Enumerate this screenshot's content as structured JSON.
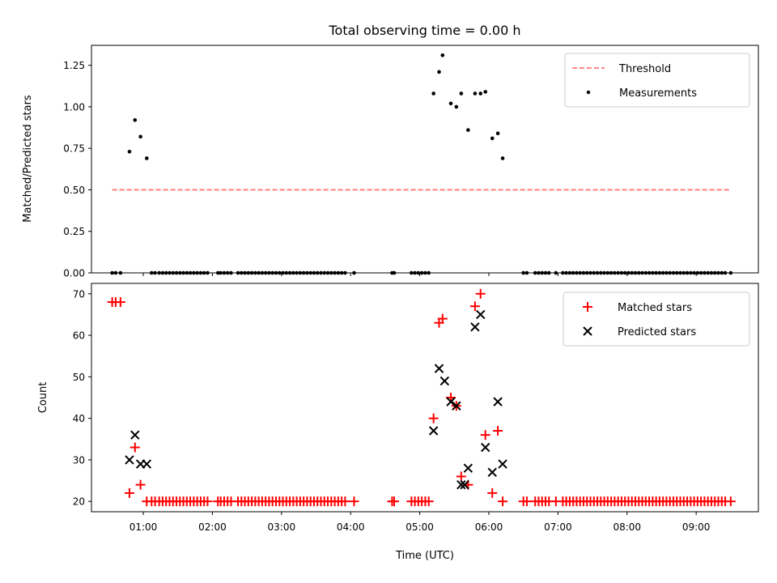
{
  "chart_data": {
    "title": "Total observing time = 0.00 h",
    "xlabel": "Time (UTC)",
    "x_tick_labels": [
      "01:00",
      "02:00",
      "03:00",
      "04:00",
      "05:00",
      "06:00",
      "07:00",
      "08:00",
      "09:00"
    ],
    "x_tick_hours": [
      1,
      2,
      3,
      4,
      5,
      6,
      7,
      8,
      9
    ],
    "xlim_hours": [
      0.25,
      9.9
    ],
    "colors": {
      "threshold": "#ff7777",
      "measurements": "#000000",
      "matched": "#ff0000",
      "predicted": "#000000"
    },
    "panels": [
      {
        "type": "scatter",
        "ylabel": "Matched/Predicted stars",
        "ylim": [
          0,
          1.37
        ],
        "y_ticks": [
          0.0,
          0.25,
          0.5,
          0.75,
          1.0,
          1.25
        ],
        "y_tick_labels": [
          "0.00",
          "0.25",
          "0.50",
          "0.75",
          "1.00",
          "1.25"
        ],
        "legend": [
          "Threshold",
          "Measurements"
        ],
        "legend_position": "top-right",
        "threshold": {
          "name": "Threshold",
          "y": 0.5,
          "x_range": [
            0.55,
            9.5
          ]
        },
        "measurements": {
          "name": "Measurements",
          "x": [
            0.55,
            0.6,
            0.67,
            0.8,
            0.88,
            0.96,
            1.05,
            1.12,
            1.17,
            1.23,
            1.28,
            1.33,
            1.38,
            1.43,
            1.48,
            1.53,
            1.58,
            1.63,
            1.68,
            1.73,
            1.78,
            1.83,
            1.88,
            1.93,
            2.08,
            2.12,
            2.17,
            2.22,
            2.27,
            2.37,
            2.42,
            2.47,
            2.52,
            2.57,
            2.62,
            2.67,
            2.72,
            2.77,
            2.82,
            2.87,
            2.92,
            2.97,
            3.02,
            3.07,
            3.12,
            3.17,
            3.22,
            3.27,
            3.32,
            3.37,
            3.42,
            3.47,
            3.52,
            3.57,
            3.62,
            3.67,
            3.72,
            3.77,
            3.82,
            3.87,
            3.92,
            4.05,
            4.6,
            4.63,
            4.88,
            4.93,
            4.98,
            5.03,
            5.08,
            5.13,
            5.2,
            5.28,
            5.33,
            5.45,
            5.53,
            5.6,
            5.7,
            5.8,
            5.88,
            5.95,
            6.05,
            6.13,
            6.2,
            6.5,
            6.55,
            6.67,
            6.72,
            6.77,
            6.82,
            6.87,
            6.97,
            7.07,
            7.12,
            7.17,
            7.22,
            7.27,
            7.32,
            7.37,
            7.42,
            7.47,
            7.52,
            7.57,
            7.62,
            7.67,
            7.72,
            7.77,
            7.82,
            7.87,
            7.92,
            7.97,
            8.02,
            8.07,
            8.12,
            8.17,
            8.22,
            8.27,
            8.32,
            8.37,
            8.42,
            8.47,
            8.52,
            8.57,
            8.62,
            8.67,
            8.72,
            8.77,
            8.82,
            8.87,
            8.92,
            8.97,
            9.02,
            9.07,
            9.12,
            9.17,
            9.22,
            9.27,
            9.32,
            9.37,
            9.42,
            9.5
          ],
          "y": [
            0,
            0,
            0,
            0.73,
            0.92,
            0.82,
            0.69,
            0,
            0,
            0,
            0,
            0,
            0,
            0,
            0,
            0,
            0,
            0,
            0,
            0,
            0,
            0,
            0,
            0,
            0,
            0,
            0,
            0,
            0,
            0,
            0,
            0,
            0,
            0,
            0,
            0,
            0,
            0,
            0,
            0,
            0,
            0,
            0,
            0,
            0,
            0,
            0,
            0,
            0,
            0,
            0,
            0,
            0,
            0,
            0,
            0,
            0,
            0,
            0,
            0,
            0,
            0,
            0,
            0,
            0,
            0,
            0,
            0,
            0,
            0,
            1.08,
            1.21,
            1.31,
            1.02,
            1.0,
            1.08,
            0.86,
            1.08,
            1.08,
            1.09,
            0.81,
            0.84,
            0.69,
            0,
            0,
            0,
            0,
            0,
            0,
            0,
            0,
            0,
            0,
            0,
            0,
            0,
            0,
            0,
            0,
            0,
            0,
            0,
            0,
            0,
            0,
            0,
            0,
            0,
            0,
            0,
            0,
            0,
            0,
            0,
            0,
            0,
            0,
            0,
            0,
            0,
            0,
            0,
            0,
            0,
            0,
            0,
            0,
            0,
            0,
            0,
            0,
            0,
            0,
            0,
            0,
            0,
            0,
            0,
            0,
            0
          ]
        }
      },
      {
        "type": "scatter",
        "ylabel": "Count",
        "ylim": [
          17.5,
          72.5
        ],
        "y_ticks": [
          20,
          30,
          40,
          50,
          60,
          70
        ],
        "y_tick_labels": [
          "20",
          "30",
          "40",
          "50",
          "60",
          "70"
        ],
        "legend": [
          "Matched stars",
          "Predicted stars"
        ],
        "legend_position": "top-right",
        "series": [
          {
            "name": "Matched stars",
            "marker": "+",
            "x": [
              0.55,
              0.6,
              0.67,
              0.8,
              0.88,
              0.96,
              1.05,
              1.12,
              1.17,
              1.23,
              1.28,
              1.33,
              1.38,
              1.43,
              1.48,
              1.53,
              1.58,
              1.63,
              1.68,
              1.73,
              1.78,
              1.83,
              1.88,
              1.93,
              2.08,
              2.12,
              2.17,
              2.22,
              2.27,
              2.37,
              2.42,
              2.47,
              2.52,
              2.57,
              2.62,
              2.67,
              2.72,
              2.77,
              2.82,
              2.87,
              2.92,
              2.97,
              3.02,
              3.07,
              3.12,
              3.17,
              3.22,
              3.27,
              3.32,
              3.37,
              3.42,
              3.47,
              3.52,
              3.57,
              3.62,
              3.67,
              3.72,
              3.77,
              3.82,
              3.87,
              3.92,
              4.05,
              4.6,
              4.63,
              4.88,
              4.93,
              4.98,
              5.03,
              5.08,
              5.13,
              5.2,
              5.28,
              5.33,
              5.45,
              5.53,
              5.6,
              5.7,
              5.8,
              5.88,
              5.95,
              6.05,
              6.13,
              6.2,
              6.5,
              6.55,
              6.67,
              6.72,
              6.77,
              6.82,
              6.87,
              6.97,
              7.07,
              7.12,
              7.17,
              7.22,
              7.27,
              7.32,
              7.37,
              7.42,
              7.47,
              7.52,
              7.57,
              7.62,
              7.67,
              7.72,
              7.77,
              7.82,
              7.87,
              7.92,
              7.97,
              8.02,
              8.07,
              8.12,
              8.17,
              8.22,
              8.27,
              8.32,
              8.37,
              8.42,
              8.47,
              8.52,
              8.57,
              8.62,
              8.67,
              8.72,
              8.77,
              8.82,
              8.87,
              8.92,
              8.97,
              9.02,
              9.07,
              9.12,
              9.17,
              9.22,
              9.27,
              9.32,
              9.37,
              9.42,
              9.5
            ],
            "y": [
              68,
              68,
              68,
              22,
              33,
              24,
              20,
              20,
              20,
              20,
              20,
              20,
              20,
              20,
              20,
              20,
              20,
              20,
              20,
              20,
              20,
              20,
              20,
              20,
              20,
              20,
              20,
              20,
              20,
              20,
              20,
              20,
              20,
              20,
              20,
              20,
              20,
              20,
              20,
              20,
              20,
              20,
              20,
              20,
              20,
              20,
              20,
              20,
              20,
              20,
              20,
              20,
              20,
              20,
              20,
              20,
              20,
              20,
              20,
              20,
              20,
              20,
              20,
              20,
              20,
              20,
              20,
              20,
              20,
              20,
              40,
              63,
              64,
              45,
              43,
              26,
              24,
              67,
              70,
              36,
              22,
              37,
              20,
              20,
              20,
              20,
              20,
              20,
              20,
              20,
              20,
              20,
              20,
              20,
              20,
              20,
              20,
              20,
              20,
              20,
              20,
              20,
              20,
              20,
              20,
              20,
              20,
              20,
              20,
              20,
              20,
              20,
              20,
              20,
              20,
              20,
              20,
              20,
              20,
              20,
              20,
              20,
              20,
              20,
              20,
              20,
              20,
              20,
              20,
              20,
              20,
              20,
              20,
              20,
              20,
              20,
              20,
              20,
              20,
              20
            ]
          },
          {
            "name": "Predicted stars",
            "marker": "x",
            "x": [
              0.8,
              0.88,
              0.96,
              1.05,
              5.2,
              5.28,
              5.36,
              5.45,
              5.53,
              5.6,
              5.65,
              5.7,
              5.8,
              5.88,
              5.95,
              6.05,
              6.13,
              6.2
            ],
            "y": [
              30,
              36,
              29,
              29,
              37,
              52,
              49,
              44,
              43,
              24,
              24,
              28,
              62,
              65,
              33,
              27,
              44,
              29
            ]
          }
        ]
      }
    ]
  }
}
